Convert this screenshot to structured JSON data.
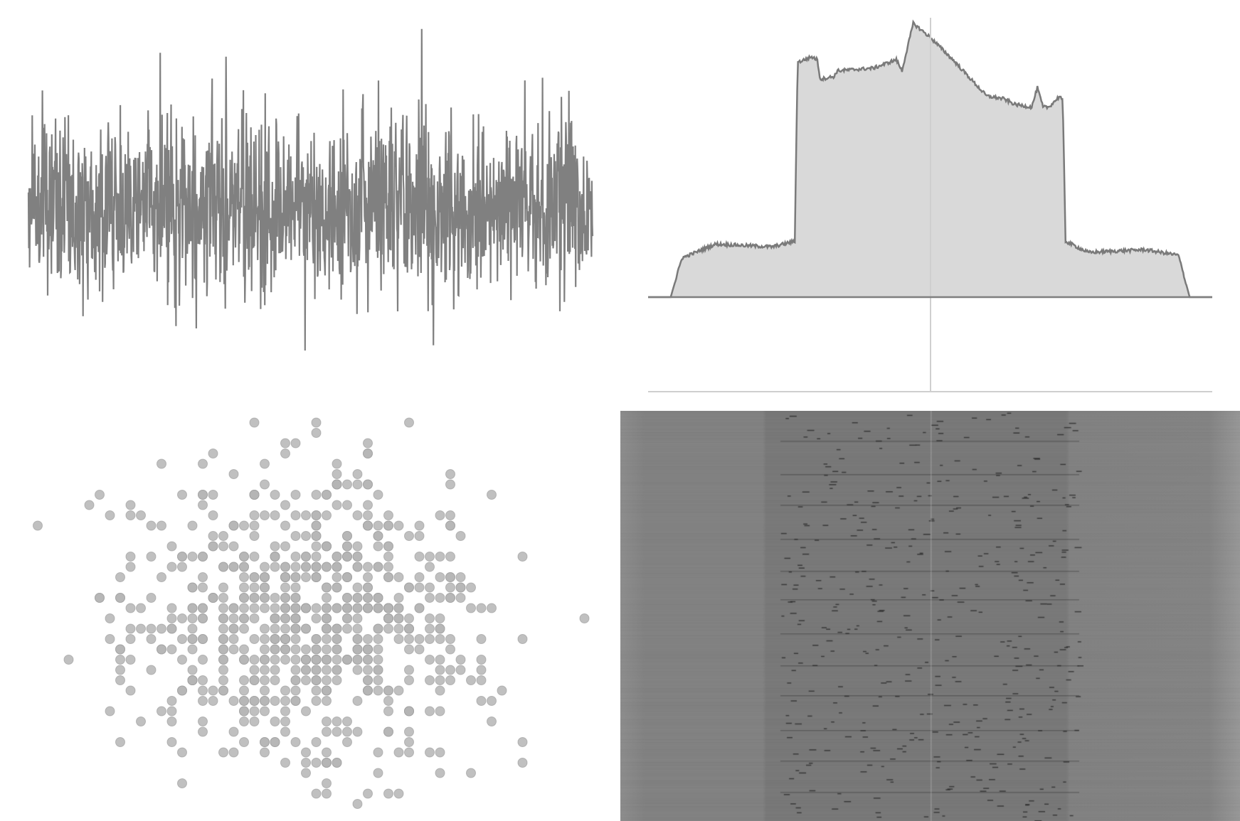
{
  "app": {
    "description_panels": [
      "time-domain",
      "spectrum",
      "constellation",
      "waterfall"
    ]
  },
  "colors": {
    "background": "#ffffff",
    "trace": "#808080",
    "spectrum_fill": "#d9d9d9",
    "spectrum_line": "#7a7a7a",
    "axis": "#7f7f7f",
    "center_marker": "#cfcfcf",
    "waterfall_bg": "#868686",
    "waterfall_band": "#7b7b7b",
    "constellation_light": "#b5b5b5",
    "constellation_dark": "#8a8a8a"
  },
  "chart_data": [
    {
      "type": "line",
      "panel": "time-domain",
      "series": [
        {
          "values": "random-noise"
        }
      ],
      "grid": false
    },
    {
      "type": "area",
      "panel": "spectrum",
      "x": [
        0,
        0.04,
        0.06,
        0.12,
        0.22,
        0.26,
        0.265,
        0.29,
        0.3,
        0.305,
        0.33,
        0.335,
        0.4,
        0.44,
        0.45,
        0.47,
        0.5,
        0.53,
        0.54,
        0.6,
        0.63,
        0.65,
        0.68,
        0.69,
        0.7,
        0.71,
        0.73,
        0.735,
        0.74,
        0.78,
        0.88,
        0.94,
        0.96,
        1.0
      ],
      "y": [
        0,
        0,
        0.14,
        0.19,
        0.18,
        0.2,
        0.84,
        0.86,
        0.85,
        0.78,
        0.79,
        0.81,
        0.82,
        0.85,
        0.81,
        0.98,
        0.93,
        0.87,
        0.85,
        0.72,
        0.71,
        0.69,
        0.68,
        0.75,
        0.68,
        0.68,
        0.72,
        0.7,
        0.2,
        0.16,
        0.17,
        0.15,
        0.0,
        0.0
      ],
      "grid": false
    },
    {
      "type": "scatter",
      "panel": "constellation",
      "series": [
        {
          "values": "gaussian-cloud"
        }
      ],
      "grid": false
    },
    {
      "type": "heatmap",
      "panel": "waterfall",
      "grid": false
    }
  ]
}
